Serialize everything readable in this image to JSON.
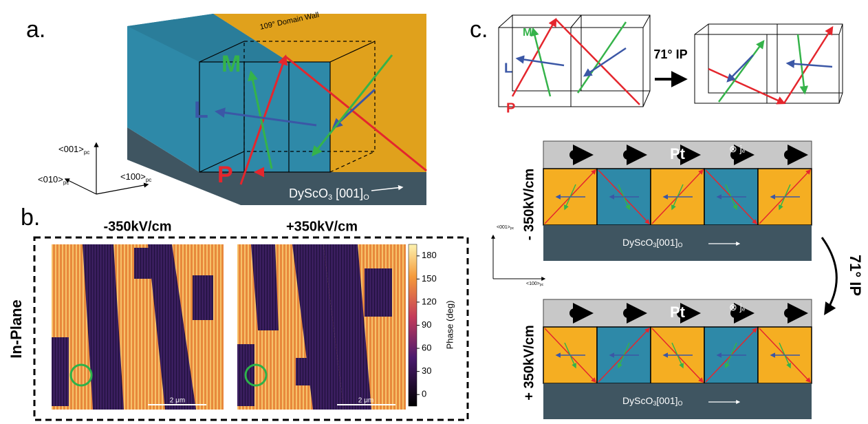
{
  "panel_a": {
    "label": "a.",
    "domain_wall": "109° Domain Wall",
    "vectors": [
      "M",
      "L",
      "P"
    ],
    "substrate": {
      "main": "DyScO",
      "sub1": "3",
      "mid": " [001]",
      "sub2": "O"
    },
    "axes": [
      {
        "main": "<001>",
        "sub": "pc"
      },
      {
        "main": "<010>",
        "sub": "pc"
      },
      {
        "main": "<100>",
        "sub": "pc"
      }
    ]
  },
  "panel_b": {
    "label": "b.",
    "titles": [
      "-350kV/cm",
      "+350kV/cm"
    ],
    "row_label": "In-Plane",
    "scale_bars": [
      "2 μm",
      "2 μm"
    ],
    "colorbar": {
      "label": "Phase (deg)",
      "lim": [
        -15,
        195
      ],
      "ticks": [
        0,
        30,
        60,
        90,
        120,
        150,
        180
      ]
    }
  },
  "panel_c": {
    "label": "c.",
    "vectors": [
      "M",
      "L",
      "P"
    ],
    "transition": "71° IP",
    "top": {
      "field": "- 350kV/cm",
      "metal": "Pt",
      "current": "⊗ j",
      "current_sub": "e",
      "substrate": {
        "main": "DyScO",
        "sub1": "3",
        "mid": "[001]",
        "sub2": "O"
      }
    },
    "bottom": {
      "field": "+ 350kV/cm",
      "metal": "Pt",
      "current": "⊗ j",
      "current_sub": "e",
      "substrate": {
        "main": "DyScO",
        "sub1": "3",
        "mid": "[001]",
        "sub2": "O"
      }
    },
    "axes": [
      {
        "main": "<001>",
        "sub": "pc"
      },
      {
        "main": "<100>",
        "sub": "pc"
      }
    ],
    "switch": "71° IP"
  }
}
